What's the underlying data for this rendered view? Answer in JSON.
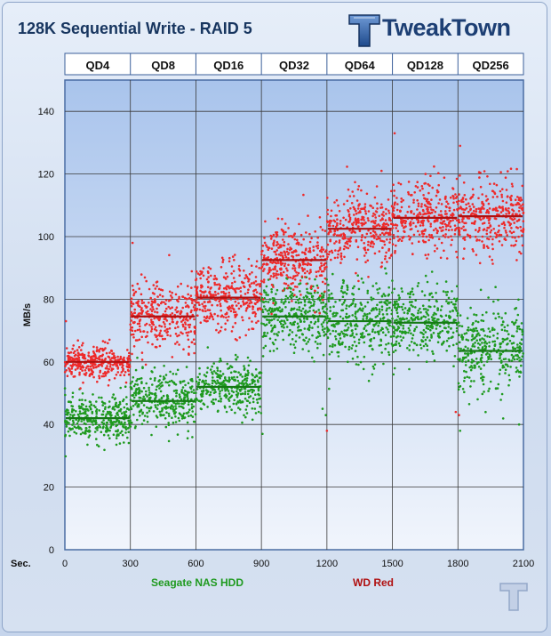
{
  "title": "128K Sequential Write - RAID 5",
  "brand": {
    "name": "TweakTown",
    "logo_icon": "tweaktown-t-logo-icon"
  },
  "colors": {
    "panel_top": "#a9c4ec",
    "panel_bottom": "#f1f5fc",
    "header_fill": "#ffffff",
    "header_border": "#3b5f9a",
    "grid": "#3a3a3a",
    "seagate": "#1f9a1f",
    "seagate_line": "#157a15",
    "wd": "#ee2a2a",
    "wd_line": "#b01010"
  },
  "chart_data": {
    "type": "scatter",
    "title": "128K Sequential Write - RAID 5",
    "xlabel_prefix": "Sec.",
    "ylabel": "MB/s",
    "xlim": [
      0,
      2100
    ],
    "ylim": [
      0,
      150
    ],
    "x_ticks": [
      0,
      300,
      600,
      900,
      1200,
      1500,
      1800,
      2100
    ],
    "y_ticks": [
      0,
      20,
      40,
      60,
      80,
      100,
      120,
      140
    ],
    "grid": true,
    "segments": [
      "QD4",
      "QD8",
      "QD16",
      "QD32",
      "QD64",
      "QD128",
      "QD256"
    ],
    "segment_width_sec": 300,
    "legend_position": "bottom",
    "series": [
      {
        "name": "Seagate NAS HDD",
        "color": "#1f9a1f",
        "line_color": "#157a15",
        "segment_means": [
          42,
          47.5,
          52,
          74.5,
          73,
          72.5,
          63.5
        ],
        "segment_spread": [
          3.5,
          4.5,
          4,
          5.5,
          6.5,
          6,
          6.5
        ],
        "points_per_segment": 330,
        "outliers": [
          {
            "x": 905,
            "y": 37
          },
          {
            "x": 1180,
            "y": 45
          },
          {
            "x": 1195,
            "y": 43
          },
          {
            "x": 1810,
            "y": 38
          },
          {
            "x": 1505,
            "y": 56
          },
          {
            "x": 2080,
            "y": 40
          },
          {
            "x": 1705,
            "y": 85
          },
          {
            "x": 1905,
            "y": 83
          }
        ]
      },
      {
        "name": "WD Red",
        "color": "#ee2a2a",
        "line_color": "#b01010",
        "segment_means": [
          60,
          74.5,
          80.5,
          92.5,
          102.5,
          106,
          106.5
        ],
        "segment_spread": [
          2.5,
          5.5,
          5.5,
          5.5,
          6,
          5.5,
          5.5
        ],
        "points_per_segment": 330,
        "outliers": [
          {
            "x": 5,
            "y": 73
          },
          {
            "x": 310,
            "y": 98
          },
          {
            "x": 1200,
            "y": 38
          },
          {
            "x": 1510,
            "y": 133
          },
          {
            "x": 1810,
            "y": 129
          },
          {
            "x": 1790,
            "y": 44
          },
          {
            "x": 1805,
            "y": 43
          },
          {
            "x": 1450,
            "y": 121
          }
        ]
      }
    ]
  }
}
